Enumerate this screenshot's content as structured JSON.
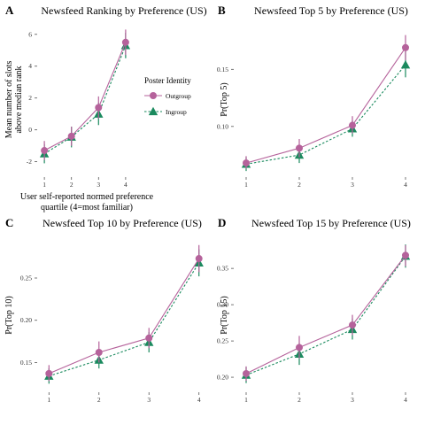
{
  "colors": {
    "outgroup": "#b5629b",
    "ingroup": "#1a8a5e",
    "tick": "#555555"
  },
  "legend": {
    "title": "Poster Identity",
    "items": [
      {
        "label": "Outgroup",
        "series": "outgroup",
        "marker": "circle",
        "linestyle": "solid"
      },
      {
        "label": "Ingroup",
        "series": "ingroup",
        "marker": "triangle",
        "linestyle": "dotted"
      }
    ]
  },
  "chart_data": [
    {
      "id": "A",
      "type": "line",
      "letter": "A",
      "title": "Newsfeed Ranking by Preference (US)",
      "xlabel": "User self-reported normed preference quartile (4=most familiar)",
      "xlabel_lines": [
        "User self-reported normed preference",
        "quartile (4=most familiar)"
      ],
      "ylabel": "Mean number of slots above median rank",
      "ylabel_lines": [
        "Mean number of slots",
        "above median rank"
      ],
      "x": [
        1,
        2,
        3,
        4
      ],
      "xlim": [
        0.8,
        4.2
      ],
      "ylim": [
        -2.8,
        6.6
      ],
      "yticks": [
        -2,
        0,
        2,
        4,
        6
      ],
      "yticklabels": [
        "-2",
        "0",
        "2",
        "4",
        "6"
      ],
      "series": [
        {
          "name": "Outgroup",
          "key": "outgroup",
          "values": [
            -1.3,
            -0.4,
            1.4,
            5.5
          ],
          "lower": [
            -1.9,
            -1.0,
            0.7,
            4.7
          ],
          "upper": [
            -0.7,
            0.2,
            2.1,
            6.3
          ]
        },
        {
          "name": "Ingroup",
          "key": "ingroup",
          "values": [
            -1.5,
            -0.45,
            1.0,
            5.3
          ],
          "lower": [
            -2.1,
            -1.1,
            0.3,
            4.5
          ],
          "upper": [
            -0.9,
            0.2,
            1.7,
            6.1
          ]
        }
      ]
    },
    {
      "id": "B",
      "type": "line",
      "letter": "B",
      "title": "Newsfeed Top 5 by Preference (US)",
      "xlabel": "",
      "ylabel": "Pr(Top 5)",
      "ylabel_lines": [
        "Pr(Top 5)"
      ],
      "x": [
        1,
        2,
        3,
        4
      ],
      "xlim": [
        0.8,
        4.2
      ],
      "ylim": [
        0.058,
        0.189
      ],
      "yticks": [
        0.1,
        0.15
      ],
      "yticklabels": [
        "0.10",
        "0.15"
      ],
      "series": [
        {
          "name": "Outgroup",
          "key": "outgroup",
          "values": [
            0.068,
            0.081,
            0.101,
            0.169
          ],
          "lower": [
            0.063,
            0.073,
            0.094,
            0.158
          ],
          "upper": [
            0.074,
            0.089,
            0.109,
            0.18
          ]
        },
        {
          "name": "Ingroup",
          "key": "ingroup",
          "values": [
            0.067,
            0.075,
            0.098,
            0.154
          ],
          "lower": [
            0.061,
            0.068,
            0.091,
            0.143
          ],
          "upper": [
            0.073,
            0.083,
            0.105,
            0.166
          ]
        }
      ]
    },
    {
      "id": "C",
      "type": "line",
      "letter": "C",
      "title": "Newsfeed Top 10 by Preference (US)",
      "xlabel": "",
      "ylabel": "Pr(Top 10)",
      "ylabel_lines": [
        "Pr(Top 10)"
      ],
      "x": [
        1,
        2,
        3,
        4
      ],
      "xlim": [
        0.8,
        4.2
      ],
      "ylim": [
        0.118,
        0.294
      ],
      "yticks": [
        0.15,
        0.2,
        0.25
      ],
      "yticklabels": [
        "0.15",
        "0.20",
        "0.25"
      ],
      "series": [
        {
          "name": "Outgroup",
          "key": "outgroup",
          "values": [
            0.137,
            0.162,
            0.179,
            0.273
          ],
          "lower": [
            0.128,
            0.15,
            0.167,
            0.257
          ],
          "upper": [
            0.147,
            0.175,
            0.191,
            0.289
          ]
        },
        {
          "name": "Ingroup",
          "key": "ingroup",
          "values": [
            0.134,
            0.153,
            0.174,
            0.268
          ],
          "lower": [
            0.125,
            0.143,
            0.162,
            0.252
          ],
          "upper": [
            0.143,
            0.163,
            0.186,
            0.284
          ]
        }
      ]
    },
    {
      "id": "D",
      "type": "line",
      "letter": "D",
      "title": "Newsfeed Top 15 by Preference (US)",
      "xlabel": "",
      "ylabel": "Pr(Top 15)",
      "ylabel_lines": [
        "Pr(Top 15)"
      ],
      "x": [
        1,
        2,
        3,
        4
      ],
      "xlim": [
        0.8,
        4.2
      ],
      "ylim": [
        0.183,
        0.388
      ],
      "yticks": [
        0.2,
        0.25,
        0.3,
        0.35
      ],
      "yticklabels": [
        "0.20",
        "0.25",
        "0.30",
        "0.35"
      ],
      "series": [
        {
          "name": "Outgroup",
          "key": "outgroup",
          "values": [
            0.205,
            0.241,
            0.272,
            0.368
          ],
          "lower": [
            0.195,
            0.226,
            0.258,
            0.353
          ],
          "upper": [
            0.215,
            0.257,
            0.286,
            0.382
          ]
        },
        {
          "name": "Ingroup",
          "key": "ingroup",
          "values": [
            0.203,
            0.232,
            0.266,
            0.367
          ],
          "lower": [
            0.192,
            0.217,
            0.252,
            0.351
          ],
          "upper": [
            0.214,
            0.247,
            0.281,
            0.383
          ]
        }
      ]
    }
  ]
}
